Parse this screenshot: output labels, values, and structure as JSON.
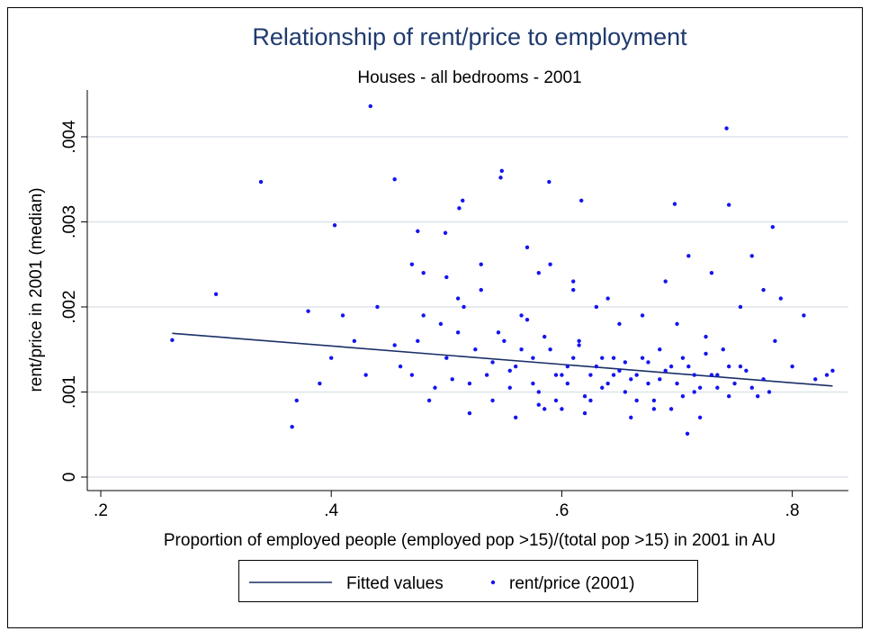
{
  "chart_data": {
    "type": "scatter",
    "title": "Relationship of rent/price to employment",
    "subtitle": "Houses - all bedrooms - 2001",
    "x_label": "Proportion of employed people (employed pop >15)/(total pop >15) in 2001 in AU",
    "y_label": "rent/price in 2001 (median)",
    "xlim": [
      0.1883,
      0.8487
    ],
    "ylim": [
      -0.000159,
      0.00455
    ],
    "xticks": [
      {
        "value": 0.2,
        "label": ".2"
      },
      {
        "value": 0.4,
        "label": ".4"
      },
      {
        "value": 0.6,
        "label": ".6"
      },
      {
        "value": 0.8,
        "label": ".8"
      }
    ],
    "yticks": [
      0,
      {
        "value": 0.001,
        "label": ".001"
      },
      {
        "value": 0.002,
        "label": ".002"
      },
      {
        "value": 0.003,
        "label": ".003"
      },
      {
        "value": 0.004,
        "label": ".004"
      }
    ],
    "grid": true,
    "legend": "bottom",
    "series": [
      {
        "name": "Fitted values",
        "type": "line",
        "color": "#1a2f66",
        "x": [
          0.262,
          0.835
        ],
        "values": [
          0.00169,
          0.00107
        ]
      },
      {
        "name": "rent/price (2001)",
        "type": "scatter",
        "color": "#1414f0",
        "x": [
          0.455,
          0.47,
          0.48,
          0.49,
          0.5,
          0.51,
          0.52,
          0.53,
          0.54,
          0.55,
          0.56,
          0.57,
          0.58,
          0.59,
          0.6,
          0.61,
          0.62,
          0.63,
          0.64,
          0.65,
          0.66,
          0.67,
          0.68,
          0.69,
          0.7,
          0.71,
          0.72,
          0.73,
          0.74,
          0.75,
          0.76,
          0.77,
          0.46,
          0.475,
          0.485,
          0.495,
          0.505,
          0.515,
          0.525,
          0.535,
          0.545,
          0.555,
          0.565,
          0.575,
          0.585,
          0.595,
          0.605,
          0.615,
          0.625,
          0.635,
          0.645,
          0.655,
          0.665,
          0.675,
          0.685,
          0.695,
          0.705,
          0.715,
          0.725,
          0.735,
          0.745,
          0.755,
          0.765,
          0.775,
          0.58,
          0.61,
          0.64,
          0.67,
          0.7,
          0.53,
          0.5,
          0.47,
          0.44,
          0.43,
          0.42,
          0.41,
          0.4,
          0.39,
          0.38,
          0.37,
          0.555,
          0.565,
          0.575,
          0.585,
          0.595,
          0.605,
          0.615,
          0.625,
          0.635,
          0.645,
          0.655,
          0.665,
          0.675,
          0.685,
          0.695,
          0.705,
          0.715,
          0.725,
          0.735,
          0.745,
          0.6,
          0.62,
          0.58,
          0.56,
          0.54,
          0.52,
          0.66,
          0.68,
          0.72,
          0.78,
          0.79,
          0.8,
          0.81,
          0.82,
          0.83,
          0.835,
          0.785,
          0.775,
          0.765,
          0.755,
          0.434,
          0.743,
          0.339,
          0.3,
          0.262,
          0.366,
          0.709,
          0.403,
          0.548,
          0.547,
          0.589,
          0.617,
          0.455,
          0.511,
          0.514,
          0.698,
          0.745,
          0.783,
          0.499,
          0.475,
          0.57,
          0.59,
          0.61,
          0.63,
          0.65,
          0.69,
          0.71,
          0.73,
          0.48,
          0.51
        ],
        "values": [
          0.00155,
          0.0012,
          0.0019,
          0.00105,
          0.0014,
          0.0017,
          0.0011,
          0.0022,
          0.00135,
          0.0016,
          0.0013,
          0.00185,
          0.001,
          0.0015,
          0.0012,
          0.0014,
          0.00095,
          0.0013,
          0.0011,
          0.00125,
          0.00115,
          0.0014,
          0.0009,
          0.00125,
          0.0011,
          0.0013,
          0.00105,
          0.0012,
          0.0015,
          0.0011,
          0.00125,
          0.00095,
          0.0013,
          0.0016,
          0.0009,
          0.0018,
          0.00115,
          0.002,
          0.0015,
          0.0012,
          0.0017,
          0.00125,
          0.0015,
          0.0011,
          0.00165,
          0.0009,
          0.0013,
          0.00155,
          0.0012,
          0.00105,
          0.0014,
          0.001,
          0.0012,
          0.00135,
          0.00115,
          0.0008,
          0.0014,
          0.001,
          0.00165,
          0.0012,
          0.00095,
          0.0013,
          0.00105,
          0.00115,
          0.0024,
          0.0022,
          0.0021,
          0.0019,
          0.0018,
          0.0025,
          0.00235,
          0.0025,
          0.002,
          0.0012,
          0.0016,
          0.0019,
          0.0014,
          0.0011,
          0.00195,
          0.0009,
          0.00105,
          0.0019,
          0.0014,
          0.0008,
          0.0012,
          0.0011,
          0.0016,
          0.0009,
          0.0014,
          0.0012,
          0.00135,
          0.0009,
          0.0011,
          0.0015,
          0.0013,
          0.00095,
          0.0012,
          0.00145,
          0.00105,
          0.0013,
          0.0008,
          0.00075,
          0.00085,
          0.0007,
          0.0009,
          0.00075,
          0.0007,
          0.0008,
          0.0007,
          0.001,
          0.0021,
          0.0013,
          0.0019,
          0.00115,
          0.0012,
          0.00125,
          0.0016,
          0.0022,
          0.0026,
          0.002,
          0.00436,
          0.0041,
          0.00347,
          0.00215,
          0.00161,
          0.00059,
          0.00051,
          0.00296,
          0.0036,
          0.00352,
          0.00347,
          0.00325,
          0.0035,
          0.00316,
          0.00325,
          0.00321,
          0.0032,
          0.00294,
          0.00287,
          0.00289,
          0.0027,
          0.0025,
          0.0023,
          0.002,
          0.0018,
          0.0023,
          0.0026,
          0.0024,
          0.0024,
          0.0021
        ]
      }
    ]
  }
}
